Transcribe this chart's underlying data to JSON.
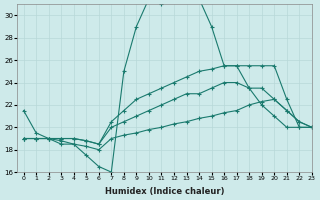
{
  "xlabel": "Humidex (Indice chaleur)",
  "ylabel": "",
  "bg_color": "#ceeaea",
  "grid_color": "#b8d8d8",
  "line_color": "#1a7a6e",
  "xlim": [
    -0.5,
    23
  ],
  "ylim": [
    16,
    31
  ],
  "xticks": [
    0,
    1,
    2,
    3,
    4,
    5,
    6,
    7,
    8,
    9,
    10,
    11,
    12,
    13,
    14,
    15,
    16,
    17,
    18,
    19,
    20,
    21,
    22,
    23
  ],
  "yticks": [
    16,
    18,
    20,
    22,
    24,
    26,
    28,
    30
  ],
  "lines": [
    {
      "x": [
        0,
        1,
        2,
        3,
        4,
        5,
        6,
        7,
        8,
        9,
        10,
        11,
        12,
        13,
        14,
        15,
        16,
        17,
        18,
        19,
        20,
        21,
        22,
        23
      ],
      "y": [
        21.5,
        19.5,
        19.0,
        18.5,
        18.5,
        17.5,
        16.5,
        16.0,
        25.0,
        29.0,
        31.5,
        31.0,
        31.5,
        31.5,
        31.5,
        29.0,
        25.5,
        25.5,
        23.5,
        22.0,
        21.0,
        20.0,
        20.0,
        20.0
      ]
    },
    {
      "x": [
        0,
        1,
        2,
        3,
        4,
        5,
        6,
        7,
        8,
        9,
        10,
        11,
        12,
        13,
        14,
        15,
        16,
        17,
        18,
        19,
        20,
        21,
        22,
        23
      ],
      "y": [
        19.0,
        19.0,
        19.0,
        19.0,
        19.0,
        18.8,
        18.5,
        20.5,
        21.5,
        22.5,
        23.0,
        23.5,
        24.0,
        24.5,
        25.0,
        25.2,
        25.5,
        25.5,
        25.5,
        25.5,
        25.5,
        22.5,
        20.0,
        20.0
      ]
    },
    {
      "x": [
        0,
        1,
        2,
        3,
        4,
        5,
        6,
        7,
        8,
        9,
        10,
        11,
        12,
        13,
        14,
        15,
        16,
        17,
        18,
        19,
        20,
        21,
        22,
        23
      ],
      "y": [
        19.0,
        19.0,
        19.0,
        19.0,
        19.0,
        18.8,
        18.5,
        20.0,
        20.5,
        21.0,
        21.5,
        22.0,
        22.5,
        23.0,
        23.0,
        23.5,
        24.0,
        24.0,
        23.5,
        23.5,
        22.5,
        21.5,
        20.5,
        20.0
      ]
    },
    {
      "x": [
        0,
        1,
        2,
        3,
        4,
        5,
        6,
        7,
        8,
        9,
        10,
        11,
        12,
        13,
        14,
        15,
        16,
        17,
        18,
        19,
        20,
        21,
        22,
        23
      ],
      "y": [
        19.0,
        19.0,
        19.0,
        18.8,
        18.5,
        18.3,
        18.0,
        19.0,
        19.3,
        19.5,
        19.8,
        20.0,
        20.3,
        20.5,
        20.8,
        21.0,
        21.3,
        21.5,
        22.0,
        22.3,
        22.5,
        21.5,
        20.5,
        20.0
      ]
    }
  ]
}
